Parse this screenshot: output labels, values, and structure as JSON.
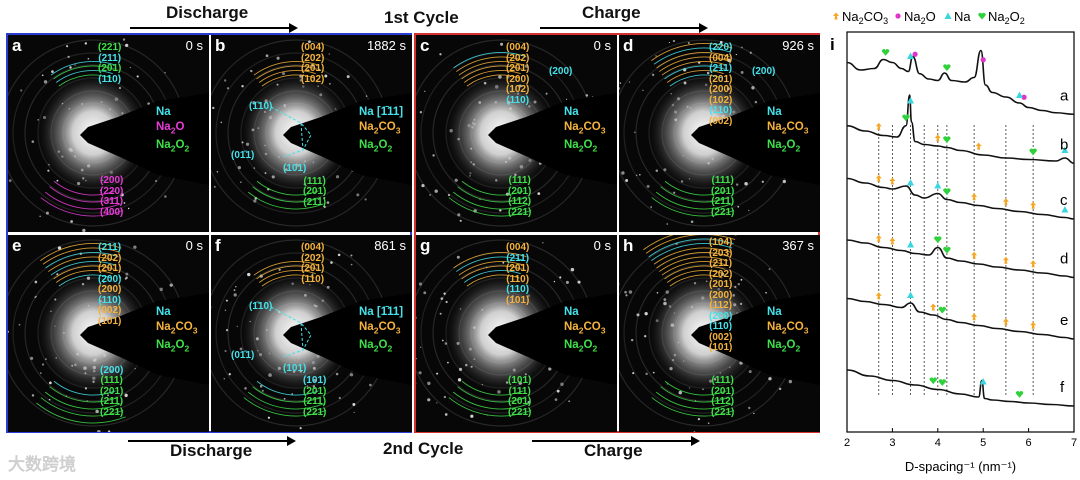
{
  "headers": {
    "cycle1": "1st Cycle",
    "cycle2": "2nd Cycle",
    "discharge_top": "Discharge",
    "charge_top": "Charge",
    "discharge_bottom": "Discharge",
    "charge_bottom": "Charge"
  },
  "panels": [
    {
      "label": "a",
      "time": "0 s",
      "rings_top": [
        "(221)",
        "(211)",
        "(201)",
        "(110)"
      ],
      "rings_top_colors": [
        "g",
        "c",
        "g",
        "c"
      ],
      "phases": [
        "Na",
        "Na2O",
        "Na2O2"
      ],
      "phase_colors": [
        "c",
        "m",
        "g"
      ],
      "rings_bottom": [
        "(200)",
        "(220)",
        "(311)",
        "(400)"
      ],
      "rings_bottom_colors": [
        "m",
        "m",
        "m",
        "m"
      ]
    },
    {
      "label": "b",
      "time": "1882 s",
      "rings_top": [
        "(004)",
        "(202)",
        "(201)",
        "(102)"
      ],
      "rings_top_colors": [
        "o",
        "o",
        "o",
        "o"
      ],
      "phases": [
        "Na [1̄11]",
        "Na2CO3",
        "Na2O2"
      ],
      "phase_colors": [
        "c",
        "o",
        "g"
      ],
      "zone": [
        "(1̄10)",
        "(01̄1)",
        "(101)"
      ],
      "rings_bottom": [
        "(111)",
        "(201)",
        "(211)"
      ],
      "rings_bottom_colors": [
        "g",
        "g",
        "g"
      ]
    },
    {
      "label": "c",
      "time": "0 s",
      "rings_top": [
        "(004)",
        "(202)",
        "(201)",
        "(200)",
        "(102)",
        "(110)"
      ],
      "rings_top_colors": [
        "o",
        "o",
        "o",
        "o",
        "o",
        "c"
      ],
      "side_label": "(200)",
      "phases": [
        "Na",
        "Na2CO3",
        "Na2O2"
      ],
      "phase_colors": [
        "c",
        "o",
        "g"
      ],
      "rings_bottom": [
        "(111)",
        "(201)",
        "(112)",
        "(221)"
      ],
      "rings_bottom_colors": [
        "g",
        "g",
        "g",
        "g"
      ]
    },
    {
      "label": "d",
      "time": "926 s",
      "rings_top": [
        "(220)",
        "(004)",
        "(211)",
        "(201)",
        "(200)",
        "(102)",
        "(110)",
        "(002)"
      ],
      "rings_top_colors": [
        "c",
        "o",
        "c",
        "o",
        "o",
        "o",
        "c",
        "o"
      ],
      "side_label": "(200)",
      "phases": [
        "Na",
        "Na2CO3",
        "Na2O2"
      ],
      "phase_colors": [
        "c",
        "o",
        "g"
      ],
      "rings_bottom": [
        "(111)",
        "(201)",
        "(211)",
        "(221)"
      ],
      "rings_bottom_colors": [
        "g",
        "g",
        "g",
        "g"
      ]
    },
    {
      "label": "e",
      "time": "0 s",
      "rings_top": [
        "(211)",
        "(202)",
        "(201)",
        "(200)",
        "(200)",
        "(110)",
        "(002)",
        "(101)"
      ],
      "rings_top_colors": [
        "c",
        "o",
        "o",
        "c",
        "o",
        "c",
        "o",
        "o"
      ],
      "phases": [
        "Na",
        "Na2CO3",
        "Na2O2"
      ],
      "phase_colors": [
        "c",
        "o",
        "g"
      ],
      "rings_bottom": [
        "(200)",
        "(111)",
        "(201)",
        "(211)",
        "(221)"
      ],
      "rings_bottom_colors": [
        "c",
        "g",
        "g",
        "g",
        "g"
      ]
    },
    {
      "label": "f",
      "time": "861 s",
      "rings_top": [
        "(004)",
        "(202)",
        "(201)",
        "(110)"
      ],
      "rings_top_colors": [
        "o",
        "o",
        "o",
        "o"
      ],
      "phases": [
        "Na [1̄11]",
        "Na2CO3",
        "Na2O2"
      ],
      "phase_colors": [
        "c",
        "o",
        "g"
      ],
      "zone": [
        "(1̄10)",
        "(01̄1)",
        "(101)"
      ],
      "rings_bottom": [
        "(101)",
        "(201)",
        "(211)",
        "(221)"
      ],
      "rings_bottom_colors": [
        "c",
        "g",
        "g",
        "g"
      ]
    },
    {
      "label": "g",
      "time": "0 s",
      "rings_top": [
        "(004)",
        "(211)",
        "(201)",
        "(110)",
        "(110)",
        "(101)"
      ],
      "rings_top_colors": [
        "o",
        "c",
        "o",
        "o",
        "c",
        "o"
      ],
      "phases": [
        "Na",
        "Na2CO3",
        "Na2O2"
      ],
      "phase_colors": [
        "c",
        "o",
        "g"
      ],
      "rings_bottom": [
        "(101)",
        "(111)",
        "(201)",
        "(221)"
      ],
      "rings_bottom_colors": [
        "g",
        "g",
        "g",
        "g"
      ]
    },
    {
      "label": "h",
      "time": "367 s",
      "rings_top": [
        "(104)",
        "(203)",
        "(211)",
        "(202)",
        "(201)",
        "(200)",
        "(112)",
        "(200)",
        "(110)",
        "(002)",
        "(101)"
      ],
      "rings_top_colors": [
        "o",
        "o",
        "o",
        "o",
        "o",
        "o",
        "o",
        "c",
        "c",
        "o",
        "o"
      ],
      "phases": [
        "Na",
        "Na2CO3",
        "Na2O2"
      ],
      "phase_colors": [
        "c",
        "o",
        "g"
      ],
      "rings_bottom": [
        "(111)",
        "(201)",
        "(112)",
        "(221)"
      ],
      "rings_bottom_colors": [
        "g",
        "g",
        "g",
        "g"
      ]
    }
  ],
  "watermark": "大数跨境",
  "chart_data": {
    "type": "line",
    "panel_label": "i",
    "xlabel": "D-spacing⁻¹ (nm⁻¹)",
    "xlim": [
      2,
      7
    ],
    "xticks": [
      2,
      3,
      4,
      5,
      6,
      7
    ],
    "legend": [
      {
        "name": "Na2CO3",
        "marker": "club",
        "color": "#f5a623"
      },
      {
        "name": "Na2O",
        "marker": "circle",
        "color": "#e033c9"
      },
      {
        "name": "Na",
        "marker": "triangle",
        "color": "#3ad6e0"
      },
      {
        "name": "Na2O2",
        "marker": "heart",
        "color": "#2fd23a"
      }
    ],
    "legend_placement": "top",
    "dashed_lines_x": [
      2.7,
      3.0,
      3.4,
      3.7,
      4.0,
      4.2,
      4.8,
      5.5,
      6.1
    ],
    "series": [
      {
        "name": "a",
        "x": [
          2.0,
          2.3,
          2.6,
          2.8,
          3.0,
          3.2,
          3.35,
          3.45,
          3.6,
          3.8,
          4.0,
          4.15,
          4.3,
          4.6,
          4.8,
          4.95,
          5.05,
          5.2,
          5.5,
          5.8,
          6.0,
          6.3,
          6.6,
          7.0
        ],
        "y": [
          0.7,
          0.6,
          0.62,
          0.74,
          0.7,
          0.62,
          0.58,
          0.78,
          0.55,
          0.48,
          0.46,
          0.56,
          0.46,
          0.44,
          0.5,
          0.86,
          0.4,
          0.3,
          0.24,
          0.16,
          0.1,
          0.06,
          0.03,
          0.01
        ],
        "markers": [
          {
            "x": 2.85,
            "m": "heart"
          },
          {
            "x": 3.4,
            "m": "triangle"
          },
          {
            "x": 3.5,
            "m": "circle"
          },
          {
            "x": 4.2,
            "m": "heart"
          },
          {
            "x": 5.0,
            "m": "circle"
          },
          {
            "x": 5.9,
            "m": "circle"
          },
          {
            "x": 5.8,
            "m": "triangle"
          }
        ]
      },
      {
        "name": "b",
        "x": [
          2.0,
          2.4,
          2.8,
          3.1,
          3.3,
          3.38,
          3.42,
          3.5,
          3.7,
          4.0,
          4.2,
          4.5,
          5.0,
          5.5,
          6.0,
          6.6,
          6.8,
          7.0
        ],
        "y": [
          0.55,
          0.48,
          0.42,
          0.4,
          0.55,
          0.96,
          0.6,
          0.34,
          0.3,
          0.28,
          0.26,
          0.22,
          0.16,
          0.12,
          0.1,
          0.08,
          0.12,
          0.05
        ],
        "markers": [
          {
            "x": 2.7,
            "m": "club"
          },
          {
            "x": 3.3,
            "m": "heart"
          },
          {
            "x": 3.4,
            "m": "triangle"
          },
          {
            "x": 4.0,
            "m": "club"
          },
          {
            "x": 4.2,
            "m": "heart"
          },
          {
            "x": 4.9,
            "m": "club"
          },
          {
            "x": 6.1,
            "m": "heart"
          },
          {
            "x": 6.8,
            "m": "triangle"
          }
        ]
      },
      {
        "name": "c",
        "x": [
          2.0,
          2.4,
          2.8,
          3.0,
          3.3,
          3.5,
          3.7,
          4.0,
          4.2,
          4.5,
          4.9,
          5.3,
          5.8,
          6.3,
          6.8,
          7.0
        ],
        "y": [
          0.62,
          0.56,
          0.5,
          0.48,
          0.52,
          0.4,
          0.36,
          0.42,
          0.34,
          0.3,
          0.26,
          0.22,
          0.18,
          0.14,
          0.1,
          0.08
        ],
        "markers": [
          {
            "x": 2.7,
            "m": "club"
          },
          {
            "x": 3.0,
            "m": "club"
          },
          {
            "x": 3.4,
            "m": "triangle"
          },
          {
            "x": 4.0,
            "m": "triangle"
          },
          {
            "x": 4.2,
            "m": "heart"
          },
          {
            "x": 4.8,
            "m": "club"
          },
          {
            "x": 5.5,
            "m": "club"
          },
          {
            "x": 6.1,
            "m": "club"
          },
          {
            "x": 6.8,
            "m": "triangle"
          }
        ]
      },
      {
        "name": "d",
        "x": [
          2.0,
          2.4,
          2.8,
          3.2,
          3.5,
          3.8,
          4.0,
          4.2,
          4.5,
          4.9,
          5.3,
          5.8,
          6.3,
          6.8,
          7.0
        ],
        "y": [
          0.6,
          0.56,
          0.5,
          0.46,
          0.42,
          0.4,
          0.5,
          0.36,
          0.32,
          0.28,
          0.24,
          0.2,
          0.16,
          0.12,
          0.1
        ],
        "markers": [
          {
            "x": 2.7,
            "m": "club"
          },
          {
            "x": 3.0,
            "m": "club"
          },
          {
            "x": 3.4,
            "m": "triangle"
          },
          {
            "x": 4.0,
            "m": "heart"
          },
          {
            "x": 4.2,
            "m": "heart"
          },
          {
            "x": 4.8,
            "m": "club"
          },
          {
            "x": 5.5,
            "m": "club"
          },
          {
            "x": 6.1,
            "m": "club"
          }
        ]
      },
      {
        "name": "e",
        "x": [
          2.0,
          2.4,
          2.8,
          3.2,
          3.4,
          3.6,
          3.9,
          4.2,
          4.5,
          4.9,
          5.3,
          5.8,
          6.3,
          6.8,
          7.0
        ],
        "y": [
          0.62,
          0.58,
          0.54,
          0.5,
          0.56,
          0.44,
          0.4,
          0.34,
          0.3,
          0.26,
          0.22,
          0.18,
          0.14,
          0.1,
          0.08
        ],
        "markers": [
          {
            "x": 2.7,
            "m": "club"
          },
          {
            "x": 3.4,
            "m": "triangle"
          },
          {
            "x": 3.9,
            "m": "club"
          },
          {
            "x": 4.1,
            "m": "heart"
          },
          {
            "x": 4.8,
            "m": "club"
          },
          {
            "x": 5.5,
            "m": "club"
          },
          {
            "x": 6.1,
            "m": "club"
          }
        ]
      },
      {
        "name": "f",
        "x": [
          2.0,
          2.5,
          3.0,
          3.5,
          4.0,
          4.5,
          4.9,
          4.97,
          5.03,
          5.2,
          5.6,
          6.0,
          6.5,
          7.0
        ],
        "y": [
          0.6,
          0.52,
          0.46,
          0.4,
          0.34,
          0.28,
          0.24,
          0.46,
          0.22,
          0.2,
          0.18,
          0.16,
          0.14,
          0.12
        ],
        "markers": [
          {
            "x": 3.9,
            "m": "heart"
          },
          {
            "x": 4.1,
            "m": "heart"
          },
          {
            "x": 5.0,
            "m": "triangle"
          },
          {
            "x": 5.8,
            "m": "heart"
          }
        ]
      }
    ]
  }
}
